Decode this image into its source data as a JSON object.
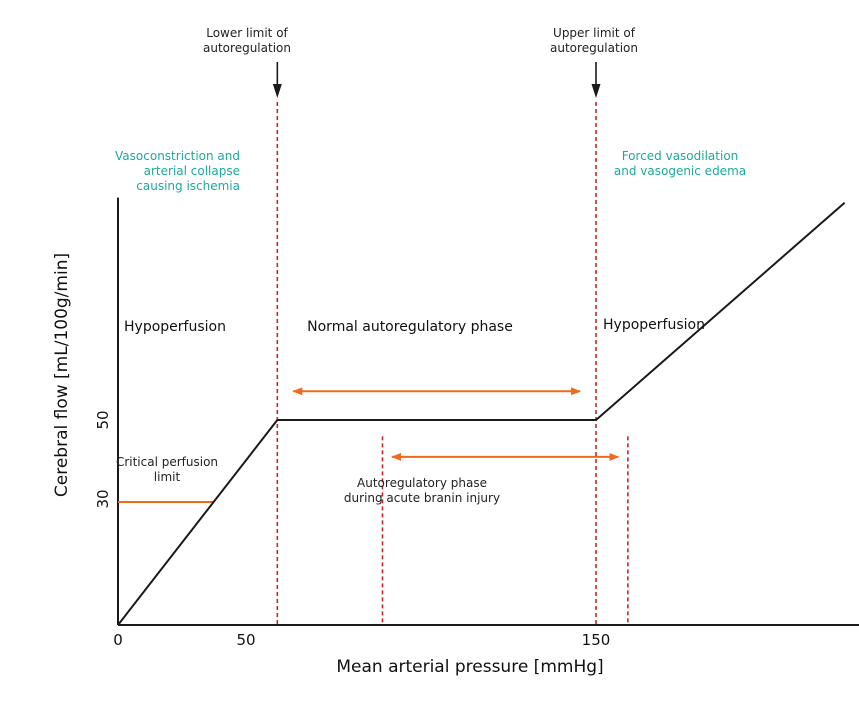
{
  "colors": {
    "axis": "#1a1a1a",
    "curve": "#1a1a1a",
    "limit_line": "#c0282d",
    "arrow_orange": "#f06a1e",
    "teal_text": "#1fa89c",
    "marker_arrow": "#1a1a1a"
  },
  "chart_data": {
    "type": "line",
    "xlabel": "Mean arterial pressure [mmHg]",
    "ylabel": "Cerebral flow [mL/100g/min]",
    "x_ticks": [
      "0",
      "50",
      "150"
    ],
    "y_ticks": [
      "50",
      "30"
    ],
    "xlim": [
      0,
      230
    ],
    "ylim": [
      0,
      125
    ],
    "curve": {
      "x": [
        0,
        50,
        150,
        228
      ],
      "y": [
        0,
        50,
        50,
        103
      ]
    },
    "limits": {
      "lower": {
        "x": 50,
        "label_lines": [
          "Lower limit of",
          "autoregulation"
        ]
      },
      "upper": {
        "x": 150,
        "label_lines": [
          "Upper limit of",
          "autoregulation"
        ]
      }
    },
    "injury_limits_x": [
      83,
      160
    ],
    "critical_perfusion": {
      "y": 30,
      "label_lines": [
        "Critical perfusion",
        "limit"
      ]
    },
    "normal_range_arrow": {
      "x": [
        55,
        145
      ],
      "y": 57
    },
    "injury_range_arrow": {
      "x": [
        86,
        157
      ],
      "y": 41
    },
    "annotations": {
      "left_effect_lines": [
        "Vasoconstriction and",
        "arterial collapse",
        "causing ischemia"
      ],
      "right_effect_lines": [
        "Forced vasodilation",
        "and vasogenic edema"
      ],
      "left_zone": "Hypoperfusion",
      "middle_zone": "Normal autoregulatory phase",
      "right_zone": "Hypoperfusion",
      "injury_phase_lines": [
        "Autoregulatory phase",
        "during acute branin injury"
      ]
    }
  }
}
